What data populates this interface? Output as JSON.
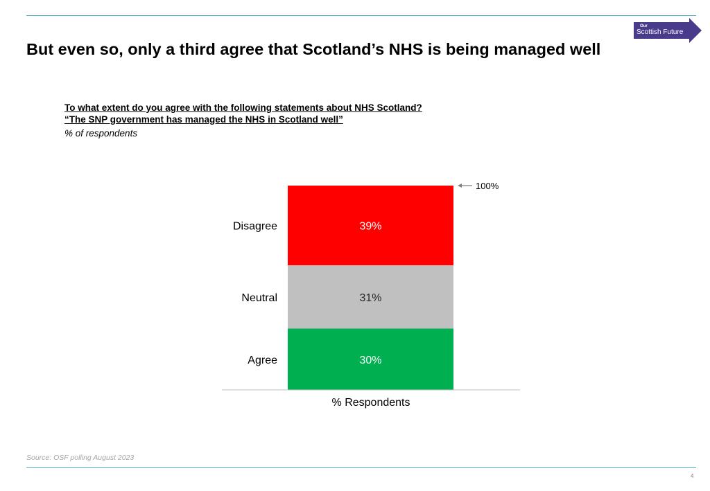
{
  "slide": {
    "headline": "But even so, only a third agree that Scotland’s NHS is being managed well",
    "question": "To what extent do you agree with the following statements about NHS Scotland?",
    "statement": "“The SNP government has managed the NHS in Scotland well”",
    "subtitle": "% of respondents",
    "source": "Source: OSF polling August 2023",
    "page_number": "4"
  },
  "logo": {
    "top_text": "Our",
    "main_text": "Scottish Future",
    "colors": {
      "arrow": "#4a3a8c",
      "text": "#ffffff"
    }
  },
  "chart_data": {
    "type": "bar",
    "stacked": true,
    "categories": [
      "% Respondents"
    ],
    "xlabel": "% Respondents",
    "ylabel": "",
    "total_label": "100%",
    "series": [
      {
        "name": "Agree",
        "values": [
          30
        ],
        "label": "30%",
        "color": "#00b050",
        "label_color": "#ffffff"
      },
      {
        "name": "Neutral",
        "values": [
          31
        ],
        "label": "31%",
        "color": "#c0c0c0",
        "label_color": "#262626"
      },
      {
        "name": "Disagree",
        "values": [
          39
        ],
        "label": "39%",
        "color": "#ff0000",
        "label_color": "#ffffff"
      }
    ],
    "ylim": [
      0,
      100
    ],
    "grid": false,
    "legend": "none"
  }
}
